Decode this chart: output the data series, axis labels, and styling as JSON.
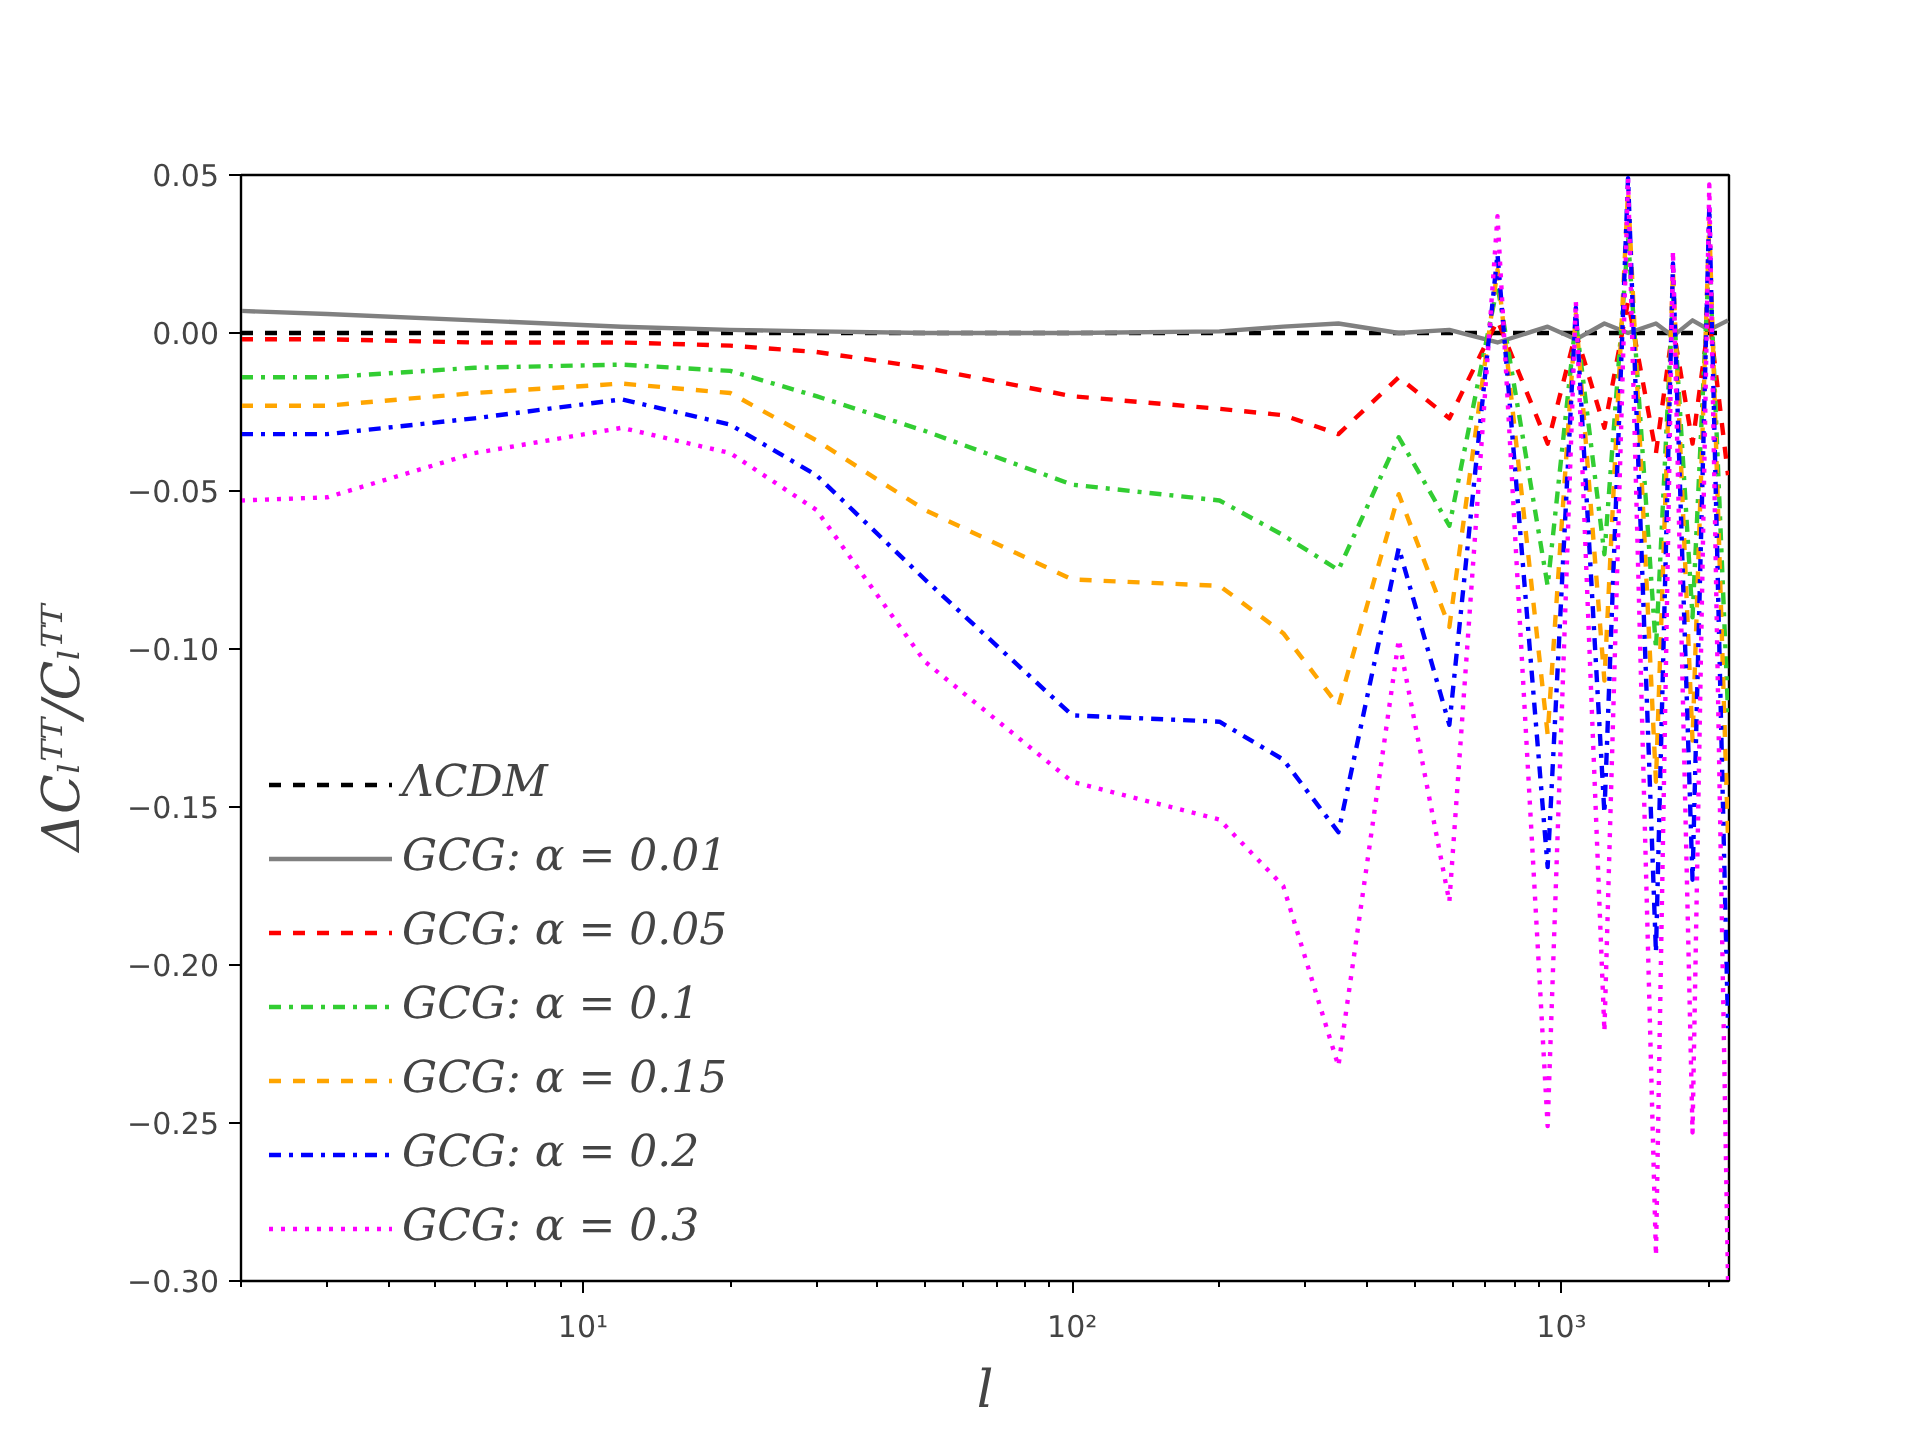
{
  "chart_data": {
    "type": "line",
    "xlabel": "l",
    "ylabel": "ΔCₗᵀᵀ/Cₗᵀᵀ",
    "x": [
      2,
      3,
      6,
      12,
      20,
      30,
      50,
      100,
      200,
      270,
      350,
      465,
      590,
      740,
      937,
      1070,
      1224,
      1368,
      1560,
      1690,
      1853,
      2005,
      2190
    ],
    "series": [
      {
        "name": "ΛCDM",
        "color": "#000000",
        "line_style": "dashed",
        "values": [
          0,
          0,
          0,
          0,
          0,
          0,
          0,
          0,
          0,
          0,
          0,
          0,
          0,
          0,
          0,
          0,
          0,
          0,
          0,
          0,
          0,
          0,
          0
        ]
      },
      {
        "name": "GCG: α = 0.01",
        "color": "#808080",
        "line_style": "solid",
        "values": [
          0.007,
          0.006,
          0.004,
          0.002,
          0.001,
          0.0005,
          0,
          0,
          0.0005,
          0.002,
          0.003,
          0.0,
          0.001,
          -0.003,
          0.002,
          -0.002,
          0.003,
          0,
          0.003,
          -0.001,
          0.004,
          0.001,
          0.004
        ]
      },
      {
        "name": "GCG: α = 0.05",
        "color": "#ff0000",
        "line_style": "dashed",
        "values": [
          -0.002,
          -0.002,
          -0.003,
          -0.003,
          -0.004,
          -0.006,
          -0.011,
          -0.02,
          -0.024,
          -0.026,
          -0.032,
          -0.014,
          -0.027,
          0.004,
          -0.035,
          0.0,
          -0.03,
          0.01,
          -0.038,
          0.002,
          -0.035,
          0.005,
          -0.045
        ]
      },
      {
        "name": "GCG: α = 0.1",
        "color": "#32cd32",
        "line_style": "dashdot",
        "values": [
          -0.014,
          -0.014,
          -0.011,
          -0.01,
          -0.012,
          -0.02,
          -0.031,
          -0.048,
          -0.053,
          -0.064,
          -0.075,
          -0.033,
          -0.061,
          0.015,
          -0.08,
          0.004,
          -0.07,
          0.03,
          -0.1,
          0.012,
          -0.09,
          0.025,
          -0.12
        ]
      },
      {
        "name": "GCG: α = 0.15",
        "color": "#ffa500",
        "line_style": "dashed",
        "values": [
          -0.023,
          -0.023,
          -0.019,
          -0.016,
          -0.019,
          -0.034,
          -0.056,
          -0.078,
          -0.08,
          -0.095,
          -0.118,
          -0.051,
          -0.093,
          0.02,
          -0.127,
          0.006,
          -0.11,
          0.045,
          -0.142,
          0.02,
          -0.129,
          0.035,
          -0.16
        ]
      },
      {
        "name": "GCG: α = 0.2",
        "color": "#0000ff",
        "line_style": "dashdot",
        "values": [
          -0.032,
          -0.032,
          -0.027,
          -0.021,
          -0.029,
          -0.045,
          -0.078,
          -0.121,
          -0.123,
          -0.135,
          -0.158,
          -0.068,
          -0.124,
          0.025,
          -0.169,
          0.008,
          -0.152,
          0.049,
          -0.196,
          0.022,
          -0.173,
          0.04,
          -0.22
        ]
      },
      {
        "name": "GCG: α = 0.3",
        "color": "#ff00ff",
        "line_style": "dotted",
        "values": [
          -0.053,
          -0.052,
          -0.038,
          -0.03,
          -0.038,
          -0.056,
          -0.104,
          -0.142,
          -0.154,
          -0.175,
          -0.232,
          -0.097,
          -0.18,
          0.037,
          -0.251,
          0.01,
          -0.221,
          0.049,
          -0.292,
          0.026,
          -0.253,
          0.047,
          -0.3
        ]
      }
    ],
    "log": "x",
    "xlim": [
      2,
      2200
    ],
    "xticks": [
      {
        "value": 10,
        "label": "10¹"
      },
      {
        "value": 100,
        "label": "10²"
      },
      {
        "value": 1000,
        "label": "10³"
      }
    ],
    "ylim": [
      -0.3,
      0.05
    ],
    "yticks": [
      {
        "value": -0.3,
        "label": "−0.30"
      },
      {
        "value": -0.25,
        "label": "−0.25"
      },
      {
        "value": -0.2,
        "label": "−0.20"
      },
      {
        "value": -0.15,
        "label": "−0.15"
      },
      {
        "value": -0.1,
        "label": "−0.10"
      },
      {
        "value": -0.05,
        "label": "−0.05"
      },
      {
        "value": 0.0,
        "label": "0.00"
      },
      {
        "value": 0.05,
        "label": "0.05"
      }
    ],
    "grid": false,
    "legend": "bottom left"
  }
}
